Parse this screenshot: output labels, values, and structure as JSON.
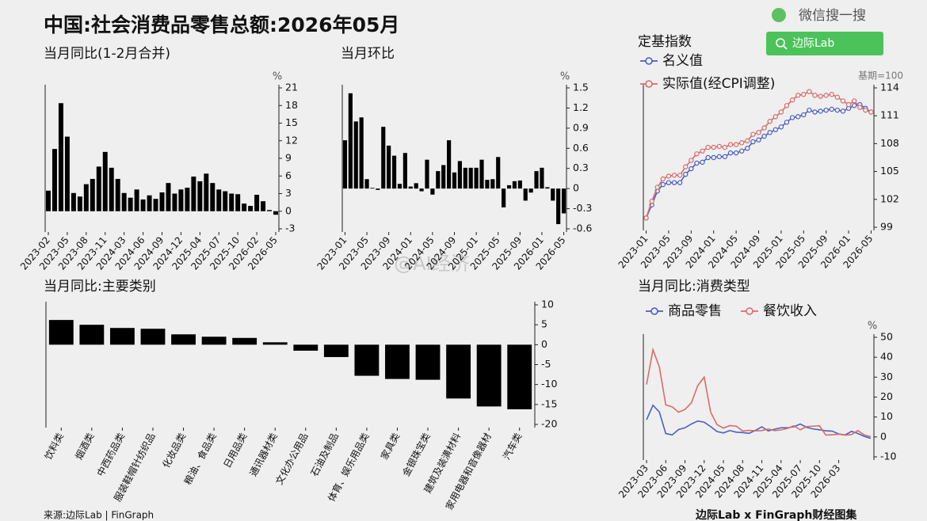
{
  "header": {
    "title": "中国:社会消费品零售总额:2026年05月",
    "search_label": "微信搜一搜",
    "search_box": "边际Lab"
  },
  "watermark": "@AI经济",
  "footer": {
    "source": "来源:边际Lab | FinGraph",
    "brand": "边际Lab x FinGraph财经图集"
  },
  "chart_data": [
    {
      "type": "bar",
      "title": "当月同比(1-2月合并)",
      "unit": "%",
      "color": "#000000",
      "categories": [
        "2023-02",
        null,
        null,
        "2023-05",
        null,
        null,
        "2023-08",
        null,
        null,
        "2023-11",
        null,
        null,
        "2024-03",
        null,
        null,
        "2024-06",
        null,
        null,
        "2024-09",
        null,
        null,
        "2024-12",
        null,
        null,
        "2025-04",
        null,
        null,
        "2025-07",
        null,
        null,
        "2025-10",
        null,
        null,
        "2026-02",
        null,
        null,
        "2026-05"
      ],
      "values": [
        3.5,
        10.6,
        18.4,
        12.7,
        3.1,
        2.5,
        4.6,
        5.5,
        7.6,
        10.1,
        7.4,
        5.5,
        3.1,
        2.3,
        3.7,
        2.0,
        2.7,
        2.1,
        3.2,
        4.8,
        3.0,
        3.7,
        4.0,
        5.9,
        5.1,
        6.4,
        4.8,
        3.7,
        3.4,
        3.0,
        2.9,
        1.3,
        0.9,
        2.8,
        1.7,
        0.2,
        -0.6
      ],
      "ylim": [
        -3,
        21
      ],
      "yticks": [
        -3,
        0,
        3,
        6,
        9,
        12,
        15,
        18,
        21
      ]
    },
    {
      "type": "bar",
      "title": "当月环比",
      "unit": "%",
      "color": "#000000",
      "categories": [
        "2023-01",
        null,
        null,
        null,
        "2023-05",
        null,
        null,
        null,
        "2023-09",
        null,
        null,
        null,
        "2024-01",
        null,
        null,
        null,
        "2024-05",
        null,
        null,
        null,
        "2024-09",
        null,
        null,
        null,
        "2025-01",
        null,
        null,
        null,
        "2025-05",
        null,
        null,
        null,
        "2025-09",
        null,
        null,
        null,
        "2026-01",
        null,
        null,
        null,
        "2026-05"
      ],
      "values": [
        0.72,
        1.42,
        1.0,
        1.06,
        0.14,
        0.01,
        -0.02,
        0.92,
        0.64,
        0.49,
        0.07,
        0.53,
        0.03,
        0.08,
        -0.04,
        0.43,
        -0.09,
        0.26,
        0.35,
        0.72,
        0.24,
        0.41,
        0.31,
        0.31,
        0.31,
        0.43,
        0.13,
        0.14,
        0.47,
        -0.28,
        0.05,
        0.11,
        0.12,
        -0.18,
        -0.06,
        0.26,
        0.31,
        0.02,
        -0.18,
        -0.53,
        -0.37
      ],
      "ylim": [
        -0.6,
        1.5
      ],
      "yticks": [
        -0.6,
        -0.3,
        0,
        0.3,
        0.6,
        0.9,
        1.2,
        1.5
      ]
    },
    {
      "type": "line",
      "title": "定基指数",
      "annotation": "基期=100",
      "markers": true,
      "categories": [
        "2023-01",
        null,
        null,
        null,
        "2023-05",
        null,
        null,
        null,
        "2023-09",
        null,
        null,
        null,
        "2024-01",
        null,
        null,
        null,
        "2024-05",
        null,
        null,
        null,
        "2024-09",
        null,
        null,
        null,
        "2025-01",
        null,
        null,
        null,
        "2025-05",
        null,
        null,
        null,
        "2025-09",
        null,
        null,
        null,
        "2026-01",
        null,
        null,
        null,
        "2026-05"
      ],
      "series": [
        {
          "name": "名义值",
          "color": "#4a5fc1",
          "values": [
            100.0,
            101.4,
            102.9,
            103.6,
            103.8,
            103.8,
            103.8,
            104.7,
            105.3,
            105.9,
            106.0,
            106.5,
            106.5,
            106.6,
            106.6,
            107.0,
            107.0,
            107.2,
            107.5,
            108.2,
            108.4,
            108.8,
            109.2,
            109.5,
            109.8,
            110.3,
            110.8,
            110.9,
            111.1,
            111.6,
            111.4,
            111.5,
            111.6,
            111.7,
            111.6,
            111.5,
            111.8,
            112.1,
            112.2,
            111.8,
            111.4
          ]
        },
        {
          "name": "实际值(经CPI调整)",
          "color": "#d96b6b",
          "values": [
            100.0,
            101.8,
            103.3,
            104.2,
            104.5,
            104.6,
            104.6,
            105.5,
            106.2,
            106.9,
            107.2,
            107.6,
            107.6,
            107.7,
            107.6,
            107.9,
            107.9,
            108.1,
            108.3,
            109.0,
            109.2,
            109.7,
            110.4,
            110.9,
            111.4,
            112.1,
            112.7,
            113.2,
            113.3,
            113.6,
            113.2,
            113.1,
            113.2,
            113.3,
            113.0,
            112.6,
            112.2,
            112.6,
            111.9,
            111.6,
            111.4
          ]
        }
      ],
      "ylim": [
        99,
        114
      ],
      "yticks": [
        99,
        102,
        105,
        108,
        111,
        114
      ]
    },
    {
      "type": "bar",
      "title": "当月同比:主要类别",
      "color": "#000000",
      "categories": [
        "饮料类",
        "烟酒类",
        "中西药品类",
        "服装鞋帽针纺织品",
        "化妆品类",
        "粮油、食品类",
        "日用品类",
        "通讯器材类",
        "文化办公用品",
        "石油及制品",
        "体育、娱乐用品类",
        "家具类",
        "金银珠宝类",
        "建筑及装潢材料",
        "家用电器和音像器材",
        "汽车类"
      ],
      "values": [
        6.2,
        5.0,
        4.2,
        4.0,
        2.6,
        2.0,
        1.7,
        0.6,
        -1.5,
        -3.1,
        -7.8,
        -8.6,
        -8.8,
        -13.5,
        -15.5,
        -16.2
      ],
      "ylim": [
        -20,
        10
      ],
      "yticks": [
        -20,
        -15,
        -10,
        -5,
        0,
        5,
        10
      ]
    },
    {
      "type": "line",
      "title": "当月同比:消费类型",
      "unit": "%",
      "markers": false,
      "categories": [
        "2023-03",
        null,
        null,
        "2023-06",
        null,
        null,
        "2023-09",
        null,
        null,
        "2023-12",
        null,
        null,
        "2024-05",
        null,
        null,
        "2024-08",
        null,
        null,
        "2024-11",
        null,
        null,
        "2025-04",
        null,
        null,
        "2025-07",
        null,
        null,
        "2025-10",
        null,
        null,
        "2026-03",
        null,
        null,
        null,
        null,
        null
      ],
      "series": [
        {
          "name": "商品零售",
          "color": "#4a5fc1",
          "values": [
            8.6,
            15.9,
            12.5,
            1.7,
            1.0,
            3.7,
            4.6,
            6.5,
            8.0,
            7.4,
            5.2,
            2.7,
            2.0,
            3.2,
            2.4,
            2.2,
            1.8,
            3.3,
            5.1,
            3.0,
            3.9,
            4.6,
            4.6,
            5.1,
            6.5,
            4.8,
            4.0,
            3.6,
            3.1,
            2.9,
            1.5,
            1.0,
            2.8,
            1.7,
            0.3,
            -0.7
          ]
        },
        {
          "name": "餐饮收入",
          "color": "#d96b6b",
          "values": [
            26.3,
            43.8,
            35.1,
            16.1,
            15.1,
            12.4,
            13.8,
            17.1,
            25.8,
            30.0,
            12.5,
            6.2,
            4.4,
            5.7,
            5.4,
            3.0,
            3.3,
            3.1,
            3.2,
            4.0,
            3.2,
            3.5,
            4.3,
            5.6,
            3.6,
            5.2,
            5.4,
            5.6,
            0.9,
            1.1,
            1.4,
            0.9,
            1.2,
            3.2,
            1.0,
            0.1
          ]
        }
      ],
      "ylim": [
        -10,
        50
      ],
      "yticks": [
        -10,
        0,
        10,
        20,
        30,
        40,
        50
      ]
    }
  ]
}
